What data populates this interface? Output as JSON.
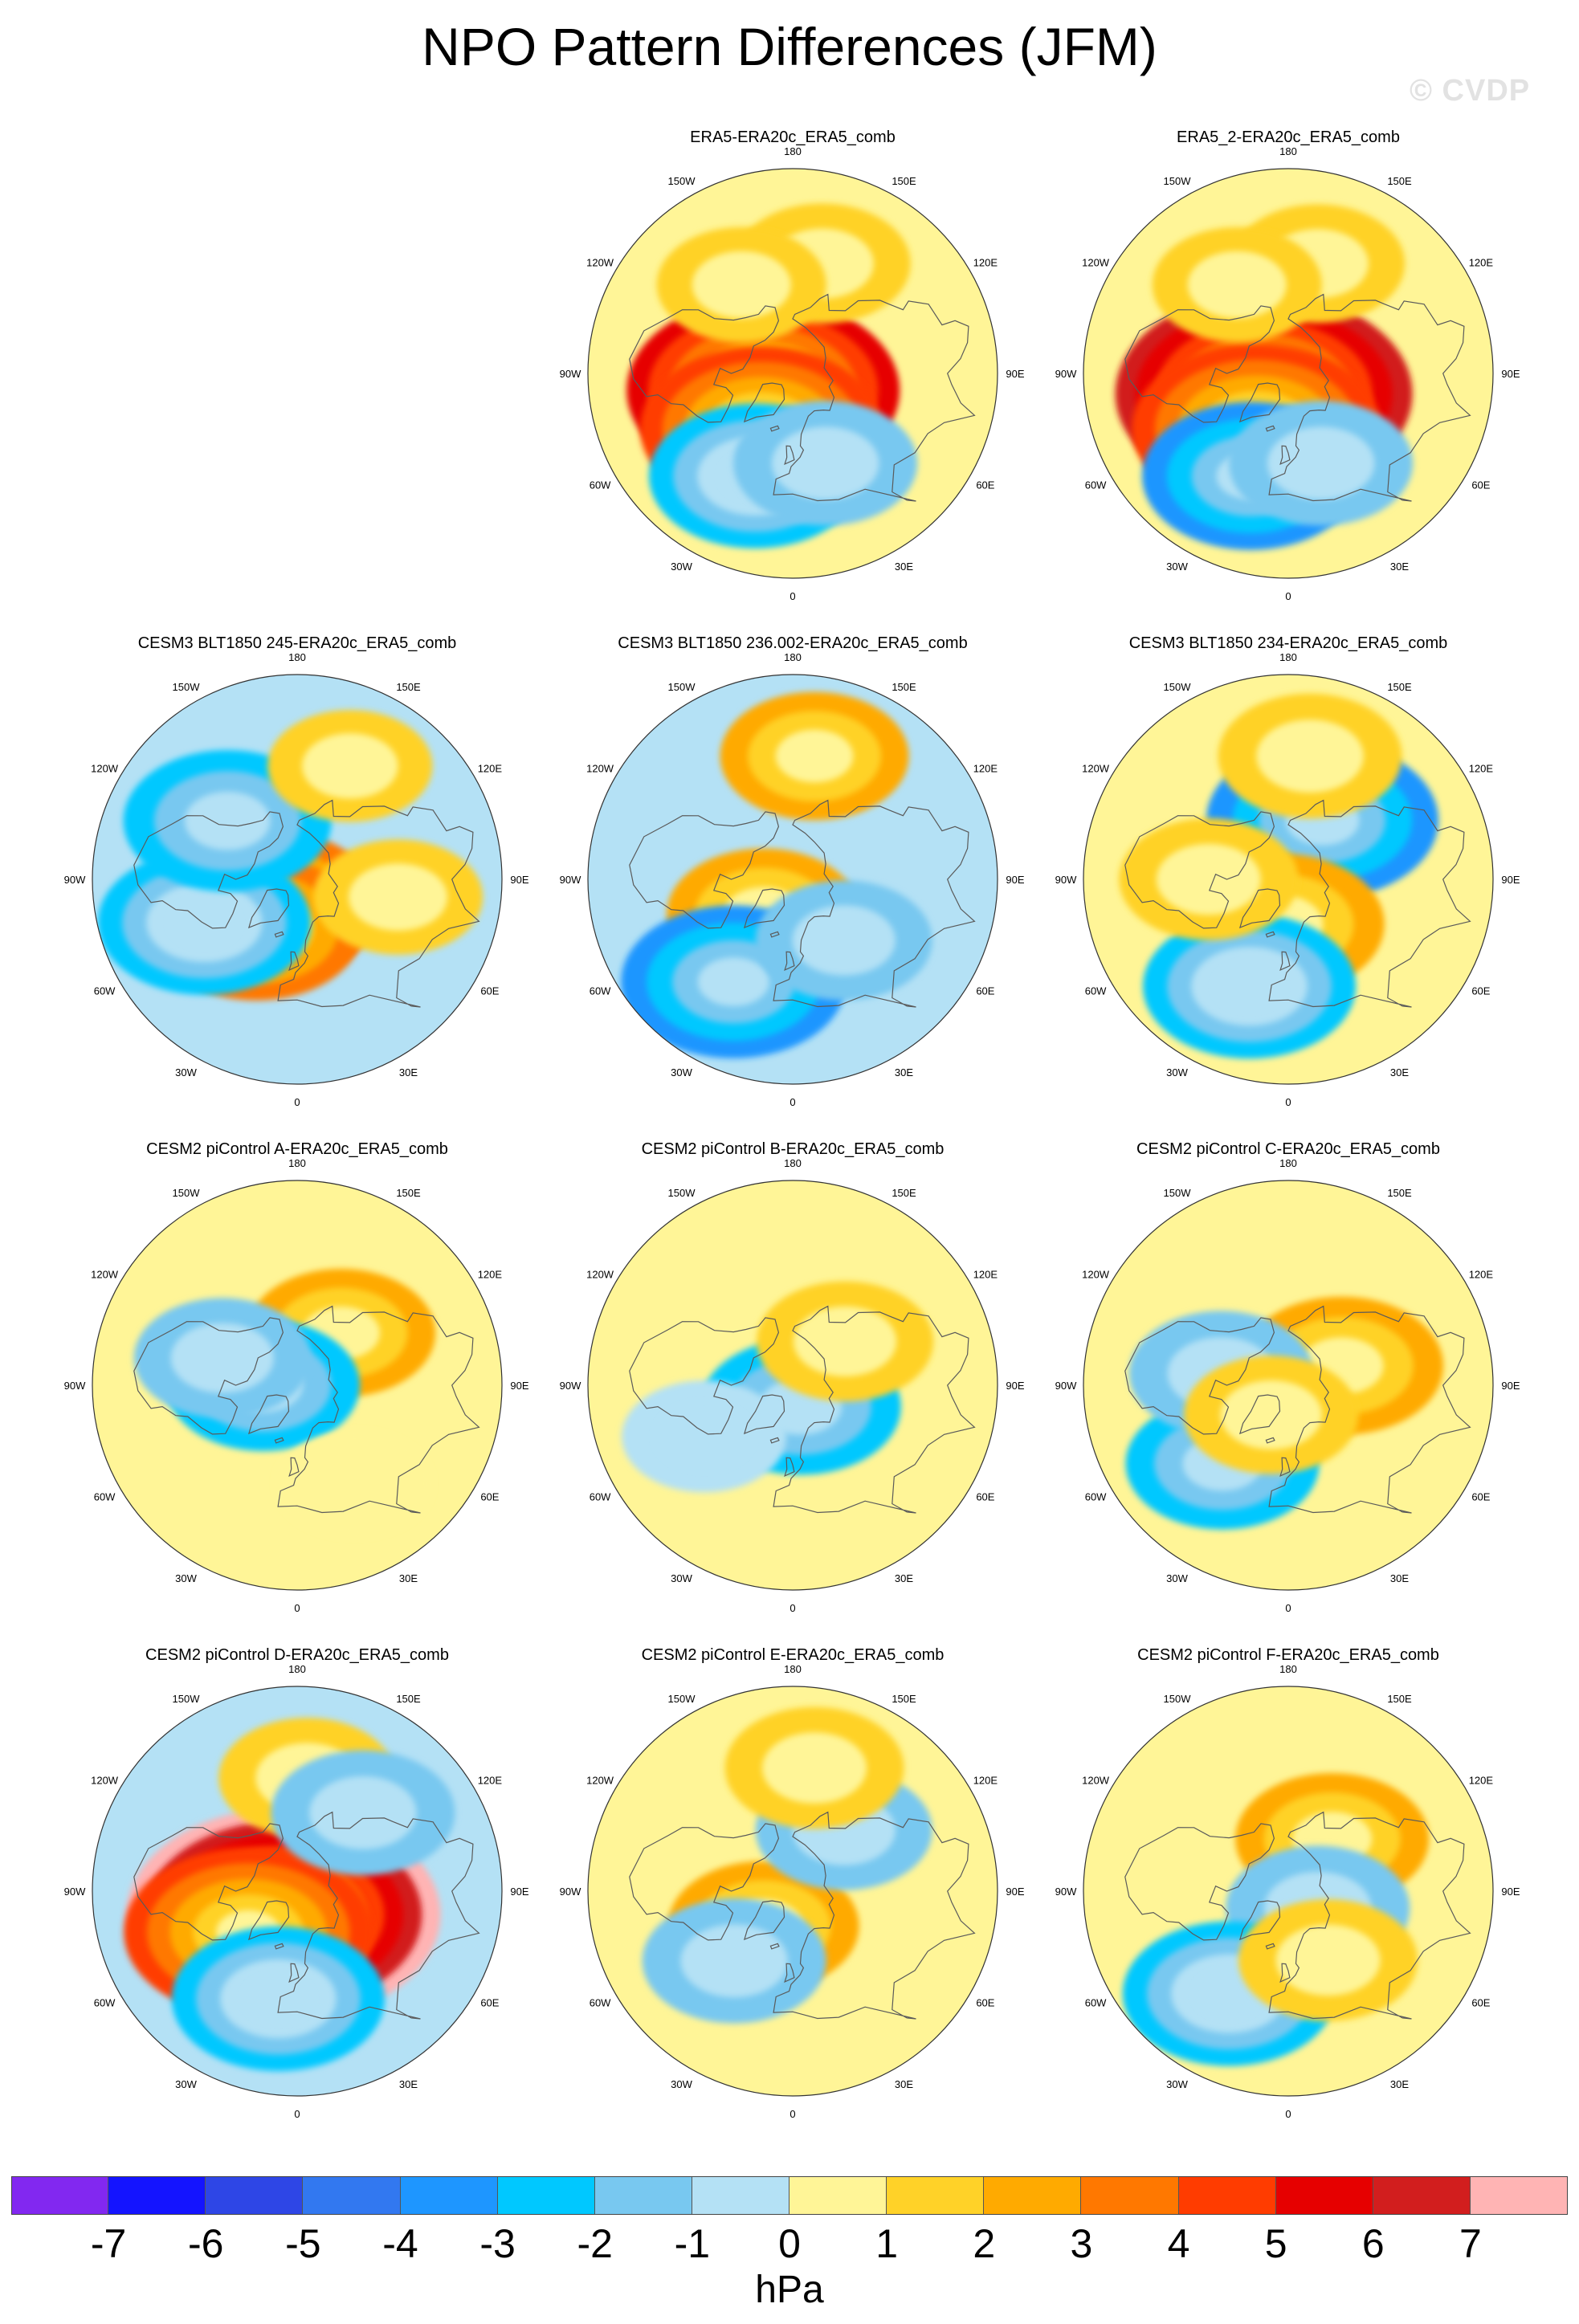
{
  "title": "NPO Pattern Differences (JFM)",
  "watermark": "© CVDP",
  "units": "hPa",
  "chart_data": {
    "type": "heatmap",
    "projection": "north polar stereographic",
    "variable": "sea level pressure difference",
    "units": "hPa",
    "contour_levels": [
      -7,
      -6,
      -5,
      -4,
      -3,
      -2,
      -1,
      0,
      1,
      2,
      3,
      4,
      5,
      6,
      7
    ],
    "colors": [
      "#8228f0",
      "#1414ff",
      "#2e46e6",
      "#3278f0",
      "#1e96ff",
      "#00c8ff",
      "#78c8f0",
      "#b4e1f5",
      "#fff597",
      "#ffd228",
      "#ffaa00",
      "#ff7800",
      "#ff3c00",
      "#e60000",
      "#d21e1e",
      "#ffb4b4"
    ],
    "longitude_labels": [
      "180",
      "150E",
      "120E",
      "90E",
      "60E",
      "30E",
      "0",
      "30W",
      "60W",
      "90W",
      "120W",
      "150W"
    ],
    "panels": [
      {
        "title": "ERA5-ERA20c_ERA5_comb",
        "background": 0.6,
        "features": [
          {
            "lat": 75,
            "lon": -60,
            "value": 5.5
          },
          {
            "lat": 62,
            "lon": -30,
            "value": 4.2
          },
          {
            "lat": 42,
            "lon": -20,
            "value": -3.0
          },
          {
            "lat": 48,
            "lon": 20,
            "value": -1.8
          },
          {
            "lat": 40,
            "lon": 165,
            "value": 1.5
          },
          {
            "lat": 45,
            "lon": -150,
            "value": 1.2
          }
        ]
      },
      {
        "title": "ERA5_2-ERA20c_ERA5_comb",
        "background": 0.6,
        "features": [
          {
            "lat": 76,
            "lon": -50,
            "value": 6.5
          },
          {
            "lat": 62,
            "lon": -30,
            "value": 4.5
          },
          {
            "lat": 42,
            "lon": -20,
            "value": -3.2
          },
          {
            "lat": 48,
            "lon": 20,
            "value": -1.8
          },
          {
            "lat": 40,
            "lon": 165,
            "value": 1.4
          },
          {
            "lat": 45,
            "lon": -150,
            "value": 1.2
          }
        ]
      },
      {
        "title": "CESM3 BLT1850 245-ERA20c_ERA5_comb",
        "background": -0.6,
        "features": [
          {
            "lat": 72,
            "lon": -50,
            "value": 3.6
          },
          {
            "lat": 62,
            "lon": -40,
            "value": 3.0
          },
          {
            "lat": 45,
            "lon": -65,
            "value": -3.0
          },
          {
            "lat": 50,
            "lon": -130,
            "value": -2.8
          },
          {
            "lat": 35,
            "lon": 155,
            "value": 1.0
          },
          {
            "lat": 45,
            "lon": 80,
            "value": 1.2
          }
        ]
      },
      {
        "title": "CESM3 BLT1850 236.002-ERA20c_ERA5_comb",
        "background": -0.6,
        "features": [
          {
            "lat": 70,
            "lon": -40,
            "value": 2.2
          },
          {
            "lat": 38,
            "lon": -30,
            "value": -3.5
          },
          {
            "lat": 35,
            "lon": 170,
            "value": 2.0
          },
          {
            "lat": 55,
            "lon": 40,
            "value": -1.5
          }
        ]
      },
      {
        "title": "CESM3 BLT1850 234-ERA20c_ERA5_comb",
        "background": 0.4,
        "features": [
          {
            "lat": 60,
            "lon": 150,
            "value": -3.8
          },
          {
            "lat": 70,
            "lon": -10,
            "value": 2.8
          },
          {
            "lat": 40,
            "lon": -20,
            "value": -3.0
          },
          {
            "lat": 55,
            "lon": -90,
            "value": 1.6
          },
          {
            "lat": 35,
            "lon": 170,
            "value": 1.8
          }
        ]
      },
      {
        "title": "CESM2 piControl A-ERA20c_ERA5_comb",
        "background": 0.4,
        "features": [
          {
            "lat": 60,
            "lon": 140,
            "value": 2.0
          },
          {
            "lat": 75,
            "lon": -90,
            "value": -2.2
          },
          {
            "lat": 55,
            "lon": -110,
            "value": -1.5
          },
          {
            "lat": 40,
            "lon": 30,
            "value": 0.6
          }
        ]
      },
      {
        "title": "CESM2 piControl B-ERA20c_ERA5_comb",
        "background": 0.4,
        "features": [
          {
            "lat": 80,
            "lon": 20,
            "value": -2.5
          },
          {
            "lat": 60,
            "lon": 130,
            "value": 1.5
          },
          {
            "lat": 45,
            "lon": -60,
            "value": -1.0
          }
        ]
      },
      {
        "title": "CESM2 piControl C-ERA20c_ERA5_comb",
        "background": 0.4,
        "features": [
          {
            "lat": 65,
            "lon": 110,
            "value": 2.6
          },
          {
            "lat": 45,
            "lon": -40,
            "value": -2.2
          },
          {
            "lat": 60,
            "lon": -100,
            "value": -1.8
          },
          {
            "lat": 75,
            "lon": -30,
            "value": 1.4
          }
        ]
      },
      {
        "title": "CESM2 piControl D-ERA20c_ERA5_comb",
        "background": -0.6,
        "features": [
          {
            "lat": 78,
            "lon": -30,
            "value": 7.2
          },
          {
            "lat": 62,
            "lon": -50,
            "value": 4.5
          },
          {
            "lat": 42,
            "lon": -10,
            "value": -3.0
          },
          {
            "lat": 40,
            "lon": 175,
            "value": 1.5
          },
          {
            "lat": 45,
            "lon": 140,
            "value": -1.8
          }
        ]
      },
      {
        "title": "CESM2 piControl E-ERA20c_ERA5_comb",
        "background": 0.4,
        "features": [
          {
            "lat": 70,
            "lon": -40,
            "value": 2.1
          },
          {
            "lat": 50,
            "lon": -40,
            "value": -1.8
          },
          {
            "lat": 55,
            "lon": 140,
            "value": -1.5
          },
          {
            "lat": 35,
            "lon": 170,
            "value": 1.6
          }
        ]
      },
      {
        "title": "CESM2 piControl F-ERA20c_ERA5_comb",
        "background": 0.4,
        "features": [
          {
            "lat": 60,
            "lon": 140,
            "value": 2.2
          },
          {
            "lat": 75,
            "lon": 60,
            "value": -1.8
          },
          {
            "lat": 38,
            "lon": -30,
            "value": -3.0
          },
          {
            "lat": 55,
            "lon": 30,
            "value": 1.6
          }
        ]
      }
    ]
  }
}
